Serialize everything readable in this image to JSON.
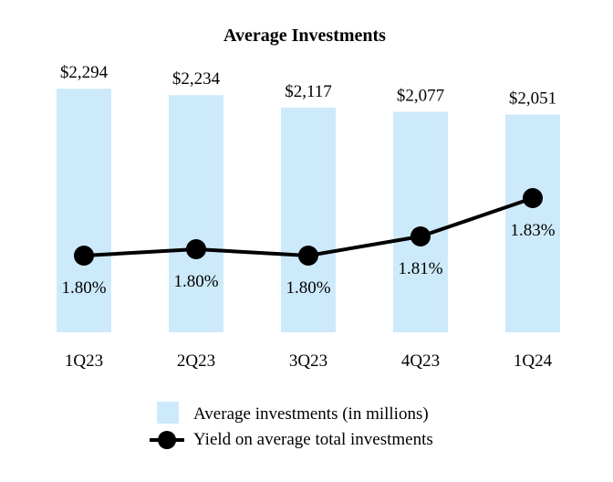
{
  "chart_data": {
    "type": "bar+line",
    "title": "Average Investments",
    "categories": [
      "1Q23",
      "2Q23",
      "3Q23",
      "4Q23",
      "1Q24"
    ],
    "series": [
      {
        "name": "Average investments (in millions)",
        "type": "bar",
        "values": [
          2294,
          2234,
          2117,
          2077,
          2051
        ],
        "labels": [
          "$2,294",
          "$2,234",
          "$2,117",
          "$2,077",
          "$2,051"
        ],
        "color": "#cdeafa"
      },
      {
        "name": "Yield on average total investments",
        "type": "line",
        "values": [
          1.8,
          1.8,
          1.8,
          1.81,
          1.83
        ],
        "labels": [
          "1.80%",
          "1.80%",
          "1.80%",
          "1.81%",
          "1.83%"
        ],
        "color": "#000000"
      }
    ],
    "legend": "bottom-center",
    "grid": false
  }
}
